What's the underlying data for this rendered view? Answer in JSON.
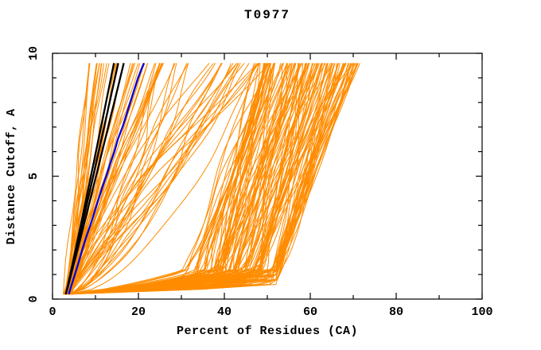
{
  "chart_data": {
    "type": "line",
    "title": "T0977",
    "xlabel": "Percent of Residues (CA)",
    "ylabel": "Distance Cutoff, A",
    "xlim": [
      0,
      100
    ],
    "ylim": [
      0,
      10
    ],
    "grid": false,
    "legend": "none",
    "x_tick_labels": [
      "0",
      "20",
      "40",
      "60",
      "80",
      "100"
    ],
    "y_tick_labels": [
      "0",
      "5",
      "10"
    ],
    "x_ticks": [
      0,
      10,
      20,
      30,
      40,
      50,
      60,
      70,
      80,
      90,
      100
    ],
    "y_ticks": [
      0,
      1,
      2,
      3,
      4,
      5,
      6,
      7,
      8,
      9,
      10
    ],
    "colors": {
      "curve_orange": "#ff8c00",
      "highlight_black": "#000000",
      "highlight_blue": "#0000dd",
      "axis": "#000000",
      "background": "#ffffff"
    },
    "seed": 7,
    "cutoff_start": 0.2,
    "cutoff_end": 9.6,
    "families": [
      {
        "name": "left-bundle",
        "kind": "power",
        "color": "#ff8c00",
        "count": 38,
        "width": 1,
        "top_base": 8.5,
        "top_spread": 17.5,
        "top_skew": 1.6,
        "p_min": 0.85,
        "p_max": 1.15,
        "wiggle": 0.8,
        "description": "steep good-model curves converging at (3,0.2), tops 8.5-26% at cutoff 9.6"
      },
      {
        "name": "mid-sparse",
        "kind": "power",
        "color": "#ff8c00",
        "count": 32,
        "width": 1,
        "top_base": 24,
        "top_spread": 28,
        "top_skew": 1.0,
        "p_min": 0.5,
        "p_max": 1.3,
        "wiggle": 2.4,
        "description": "criss-crossing mid curves, tops 24-52% at cutoff 9.6"
      },
      {
        "name": "dense-mass",
        "kind": "hockey",
        "color": "#ff8c00",
        "count": 125,
        "width": 1,
        "top_base": 47,
        "top_spread": 24,
        "drop_min": 9,
        "drop_spread": 13,
        "wiggle": 1.2,
        "description": "hockey-stick curves: sweep along bottom to knee 30-52% near cutoff 0.8, rise to 47-71% at cutoff 9.6"
      }
    ],
    "black_curves": {
      "color": "#000000",
      "width": 2.3,
      "x_start": 3.1,
      "tops": [
        14.3,
        15.3,
        16.6
      ],
      "description": "three thick black highlight curves, near-linear from (3.1,0.2) to top % at cutoff 9.6"
    },
    "blue_curve": {
      "color": "#0000dd",
      "width": 2.3,
      "points": [
        [
          3.8,
          0.2
        ],
        [
          4.3,
          0.5
        ],
        [
          5.2,
          1.0
        ],
        [
          6.1,
          1.5
        ],
        [
          6.9,
          2.0
        ],
        [
          7.8,
          2.5
        ],
        [
          8.8,
          3.0
        ],
        [
          9.7,
          3.5
        ],
        [
          10.6,
          4.0
        ],
        [
          11.5,
          4.5
        ],
        [
          12.5,
          5.0
        ],
        [
          13.4,
          5.5
        ],
        [
          14.4,
          6.0
        ],
        [
          15.2,
          6.5
        ],
        [
          16.3,
          7.0
        ],
        [
          17.2,
          7.5
        ],
        [
          18.1,
          8.0
        ],
        [
          19.0,
          8.5
        ],
        [
          19.9,
          9.0
        ],
        [
          20.6,
          9.3
        ],
        [
          21.3,
          9.6
        ]
      ],
      "description": "thick blue highlight curve from (3.8,0.2) to (21.3,9.6)"
    }
  }
}
